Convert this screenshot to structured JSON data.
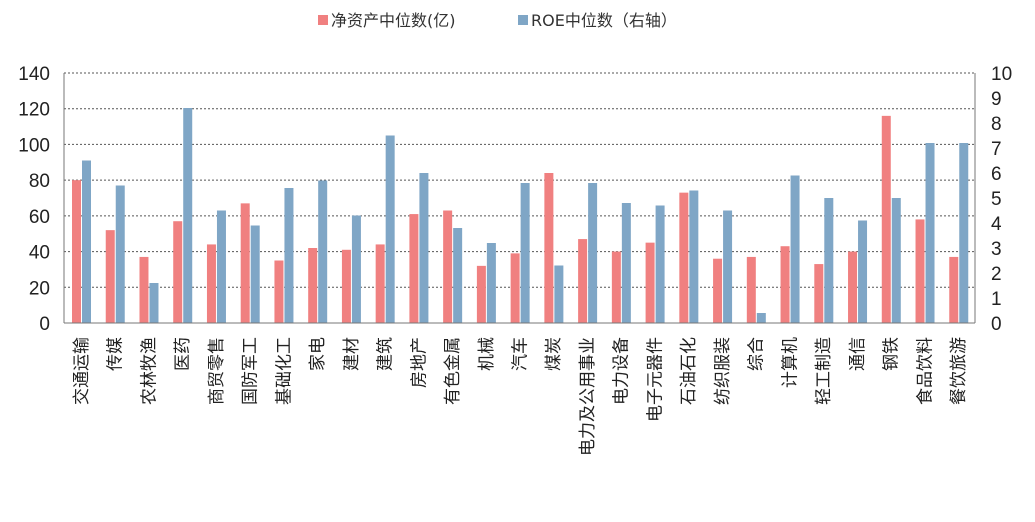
{
  "chart_data": {
    "type": "bar",
    "categories": [
      "交通运输",
      "传媒",
      "农林牧渔",
      "医药",
      "商贸零售",
      "国防军工",
      "基础化工",
      "家电",
      "建材",
      "建筑",
      "房地产",
      "有色金属",
      "机械",
      "汽车",
      "煤炭",
      "电力及公用事业",
      "电力设备",
      "电子元器件",
      "石油石化",
      "纺织服装",
      "综合",
      "计算机",
      "轻工制造",
      "通信",
      "钢铁",
      "食品饮料",
      "餐饮旅游"
    ],
    "series": [
      {
        "name": "净资产中位数(亿)",
        "axis": "left",
        "color": "#f08080",
        "values": [
          80,
          52,
          37,
          57,
          44,
          67,
          35,
          42,
          41,
          44,
          61,
          63,
          32,
          39,
          84,
          47,
          40,
          45,
          73,
          36,
          37,
          43,
          33,
          40,
          116,
          58,
          37
        ]
      },
      {
        "name": "ROE中位数（右轴）",
        "axis": "right",
        "color": "#7fa6c6",
        "values": [
          6.5,
          5.5,
          1.6,
          8.6,
          4.5,
          3.9,
          5.4,
          5.7,
          4.3,
          7.5,
          6.0,
          3.8,
          3.2,
          5.6,
          2.3,
          5.6,
          4.8,
          4.7,
          5.3,
          4.5,
          0.4,
          5.9,
          5.0,
          4.1,
          5.0,
          7.2,
          7.2
        ]
      }
    ],
    "y_left": {
      "min": 0,
      "max": 140,
      "ticks": [
        "0",
        "20",
        "40",
        "60",
        "80",
        "100",
        "120",
        "140"
      ]
    },
    "y_right": {
      "min": 0,
      "max": 10,
      "ticks": [
        "0",
        "1",
        "2",
        "3",
        "4",
        "5",
        "6",
        "7",
        "8",
        "9",
        "10"
      ]
    },
    "grid": true,
    "legend": "top-center"
  }
}
